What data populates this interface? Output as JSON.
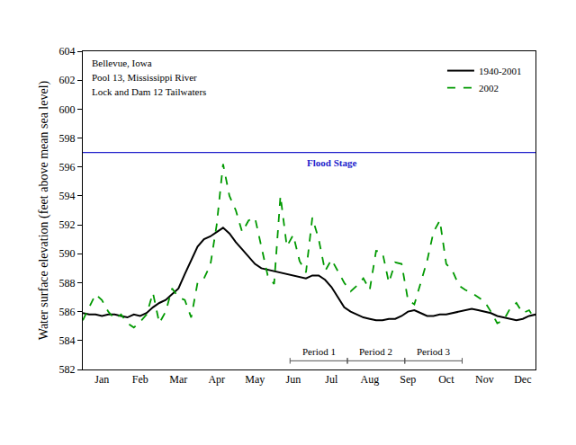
{
  "chart_data": {
    "type": "line",
    "annotations": [
      "Bellevue, Iowa",
      "Pool 13, Mississippi River",
      "Lock and Dam 12 Tailwaters"
    ],
    "y_label": "Water surface elevation (feet above mean sea level)",
    "categories": [
      null,
      null,
      null,
      "Jan",
      null,
      null,
      null,
      null,
      null,
      "Feb",
      null,
      null,
      null,
      null,
      null,
      "Mar",
      null,
      null,
      null,
      null,
      null,
      "Apr",
      null,
      null,
      null,
      null,
      null,
      "May",
      null,
      null,
      null,
      null,
      null,
      "Jun",
      null,
      null,
      null,
      null,
      null,
      "Jul",
      null,
      null,
      null,
      null,
      null,
      "Aug",
      null,
      null,
      null,
      null,
      null,
      "Sep",
      null,
      null,
      null,
      null,
      null,
      "Oct",
      null,
      null,
      null,
      null,
      null,
      "Nov",
      null,
      null,
      null,
      null,
      null,
      "Dec",
      null,
      null
    ],
    "series": [
      {
        "name": "1940-2001",
        "color": "#000000",
        "line_style": "solid",
        "values": [
          585.9,
          585.8,
          585.8,
          585.7,
          585.8,
          585.8,
          585.7,
          585.6,
          585.8,
          585.7,
          585.9,
          586.3,
          586.6,
          586.8,
          587.2,
          587.6,
          588.6,
          589.6,
          590.5,
          591.0,
          591.2,
          591.5,
          591.8,
          591.4,
          590.8,
          590.3,
          589.8,
          589.3,
          589.0,
          588.9,
          588.8,
          588.7,
          588.6,
          588.5,
          588.4,
          588.3,
          588.5,
          588.5,
          588.2,
          587.7,
          587.0,
          586.3,
          586.0,
          585.8,
          585.6,
          585.5,
          585.4,
          585.4,
          585.5,
          585.5,
          585.7,
          586.0,
          586.1,
          585.9,
          585.7,
          585.7,
          585.8,
          585.8,
          585.9,
          586.0,
          586.1,
          586.2,
          586.1,
          586.0,
          585.9,
          585.7,
          585.6,
          585.5,
          585.4,
          585.5,
          585.7,
          585.8
        ]
      },
      {
        "name": "2002",
        "color": "#009900",
        "line_style": "dashed",
        "values": [
          585.4,
          586.3,
          587.2,
          586.8,
          586.0,
          585.5,
          585.8,
          585.2,
          584.9,
          585.3,
          585.8,
          587.3,
          585.2,
          586.0,
          587.6,
          587.0,
          586.8,
          585.6,
          588.0,
          588.3,
          589.2,
          592.0,
          596.2,
          594.0,
          593.0,
          591.5,
          592.3,
          592.5,
          590.5,
          588.5,
          587.9,
          594.0,
          590.5,
          591.3,
          589.5,
          588.7,
          592.5,
          591.0,
          588.8,
          589.6,
          588.8,
          588.0,
          587.4,
          587.8,
          588.3,
          587.5,
          590.2,
          590.1,
          588.0,
          589.4,
          589.3,
          586.8,
          586.5,
          588.0,
          589.5,
          591.5,
          592.3,
          589.3,
          588.8,
          587.8,
          587.5,
          587.3,
          587.0,
          586.7,
          586.0,
          585.2,
          585.4,
          586.2,
          586.6,
          585.9,
          586.1,
          585.4
        ]
      }
    ],
    "reference_lines": [
      {
        "value": 597,
        "label": "Flood Stage",
        "color": "#2222cc"
      }
    ],
    "periods": [
      {
        "label": "Period 1",
        "start": 32.5,
        "end": 41.5
      },
      {
        "label": "Period 2",
        "start": 41.5,
        "end": 50.5
      },
      {
        "label": "Period 3",
        "start": 50.5,
        "end": 59.5
      }
    ],
    "period_y": 582.6,
    "ylim": [
      582,
      604
    ],
    "yticks": [
      582,
      584,
      586,
      588,
      590,
      592,
      594,
      596,
      598,
      600,
      602,
      604
    ],
    "legend": "top right",
    "grid": false
  }
}
